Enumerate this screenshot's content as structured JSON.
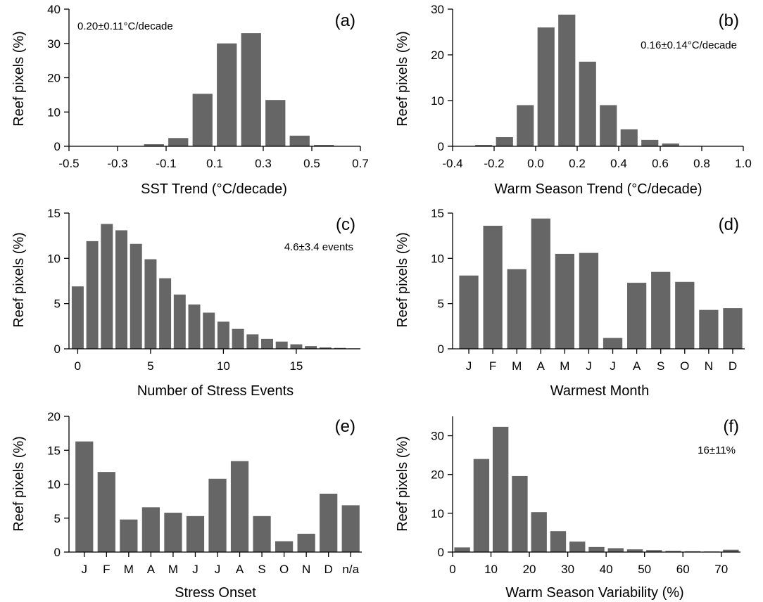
{
  "figure": {
    "panels": [
      {
        "panel_letter": "(a)",
        "annotation": "0.20±0.11°C/decade",
        "annotation_position": "top-left",
        "ylabel": "Reef pixels (%)",
        "xlabel": "SST Trend (°C/decade)"
      },
      {
        "panel_letter": "(b)",
        "annotation": "0.16±0.14°C/decade",
        "annotation_position": "top-right",
        "ylabel": "Reef pixels (%)",
        "xlabel": "Warm Season Trend (°C/decade)"
      },
      {
        "panel_letter": "(c)",
        "annotation": "4.6±3.4 events",
        "annotation_position": "top-right",
        "ylabel": "Reef pixels (%)",
        "xlabel": "Number of Stress Events"
      },
      {
        "panel_letter": "(d)",
        "annotation": "",
        "ylabel": "Reef pixels (%)",
        "xlabel": "Warmest Month"
      },
      {
        "panel_letter": "(e)",
        "annotation": "",
        "ylabel": "Reef pixels (%)",
        "xlabel": "Stress Onset"
      },
      {
        "panel_letter": "(f)",
        "annotation": "16±11%",
        "annotation_position": "top-right",
        "ylabel": "Reef pixels (%)",
        "xlabel": "Warm Season Variability (%)"
      }
    ]
  },
  "colors": {
    "bar": "#666666",
    "axis": "#000000",
    "background": "#ffffff"
  },
  "chart_data": [
    {
      "type": "bar",
      "panel": "(a)",
      "title": "",
      "xlabel": "SST Trend (°C/decade)",
      "ylabel": "Reef pixels (%)",
      "xlim": [
        -0.5,
        0.7
      ],
      "ylim": [
        0,
        40
      ],
      "xticks": [
        -0.5,
        -0.3,
        -0.1,
        0.1,
        0.3,
        0.5,
        0.7
      ],
      "xtick_labels": [
        "-0.5",
        "-0.3",
        "-0.1",
        "0.1",
        "0.3",
        "0.5",
        "0.7"
      ],
      "yticks": [
        0,
        10,
        20,
        30,
        40
      ],
      "bin_width": 0.1,
      "x": [
        -0.15,
        -0.05,
        0.05,
        0.15,
        0.25,
        0.35,
        0.45,
        0.55
      ],
      "values": [
        0.6,
        2.4,
        15.3,
        30.0,
        33.0,
        13.5,
        3.1,
        0.4
      ],
      "grid": false
    },
    {
      "type": "bar",
      "panel": "(b)",
      "title": "",
      "xlabel": "Warm Season Trend (°C/decade)",
      "ylabel": "Reef pixels (%)",
      "xlim": [
        -0.4,
        1.0
      ],
      "ylim": [
        0,
        30
      ],
      "xticks": [
        -0.4,
        -0.2,
        0.0,
        0.2,
        0.4,
        0.6,
        0.8,
        1.0
      ],
      "xtick_labels": [
        "-0.4",
        "-0.2",
        "0.0",
        "0.2",
        "0.4",
        "0.6",
        "0.8",
        "1.0"
      ],
      "yticks": [
        0,
        10,
        20,
        30
      ],
      "bin_width": 0.1,
      "x": [
        -0.25,
        -0.15,
        -0.05,
        0.05,
        0.15,
        0.25,
        0.35,
        0.45,
        0.55,
        0.65,
        0.75
      ],
      "values": [
        0.3,
        2.0,
        9.0,
        26.0,
        28.8,
        18.5,
        9.0,
        3.7,
        1.4,
        0.6,
        0.1
      ],
      "grid": false
    },
    {
      "type": "bar",
      "panel": "(c)",
      "title": "",
      "xlabel": "Number of Stress Events",
      "ylabel": "Reef pixels (%)",
      "xlim": [
        -0.6,
        19.4
      ],
      "ylim": [
        0,
        15
      ],
      "xticks": [
        0,
        5,
        10,
        15
      ],
      "xtick_labels": [
        "0",
        "5",
        "10",
        "15"
      ],
      "yticks": [
        0,
        5,
        10,
        15
      ],
      "bin_width": 1,
      "x": [
        0,
        1,
        2,
        3,
        4,
        5,
        6,
        7,
        8,
        9,
        10,
        11,
        12,
        13,
        14,
        15,
        16,
        17,
        18,
        19
      ],
      "values": [
        6.9,
        11.9,
        13.8,
        13.1,
        11.6,
        9.9,
        7.8,
        6.0,
        4.9,
        4.0,
        3.0,
        2.2,
        1.6,
        1.1,
        0.8,
        0.5,
        0.3,
        0.15,
        0.1,
        0.05
      ],
      "grid": false
    },
    {
      "type": "bar",
      "panel": "(d)",
      "title": "",
      "xlabel": "Warmest Month",
      "ylabel": "Reef pixels (%)",
      "ylim": [
        0,
        15
      ],
      "yticks": [
        0,
        5,
        10,
        15
      ],
      "categories": [
        "J",
        "F",
        "M",
        "A",
        "M",
        "J",
        "J",
        "A",
        "S",
        "O",
        "N",
        "D"
      ],
      "values": [
        8.1,
        13.6,
        8.8,
        14.4,
        10.5,
        10.6,
        1.2,
        7.3,
        8.5,
        7.4,
        4.3,
        4.5
      ],
      "grid": false
    },
    {
      "type": "bar",
      "panel": "(e)",
      "title": "",
      "xlabel": "Stress Onset",
      "ylabel": "Reef pixels (%)",
      "ylim": [
        0,
        20
      ],
      "yticks": [
        0,
        5,
        10,
        15,
        20
      ],
      "categories": [
        "J",
        "F",
        "M",
        "A",
        "M",
        "J",
        "J",
        "A",
        "S",
        "O",
        "N",
        "D",
        "n/a"
      ],
      "values": [
        16.3,
        11.8,
        4.8,
        6.6,
        5.8,
        5.3,
        10.8,
        13.4,
        5.3,
        1.6,
        2.7,
        8.6,
        6.9
      ],
      "grid": false
    },
    {
      "type": "bar",
      "panel": "(f)",
      "title": "",
      "xlabel": "Warm Season Variability (%)",
      "ylabel": "Reef pixels (%)",
      "xlim": [
        0,
        75
      ],
      "ylim": [
        0,
        35
      ],
      "xticks": [
        0,
        10,
        20,
        30,
        40,
        50,
        60,
        70
      ],
      "xtick_labels": [
        "0",
        "10",
        "20",
        "30",
        "40",
        "50",
        "60",
        "70"
      ],
      "yticks": [
        0,
        10,
        20,
        30
      ],
      "bin_width": 5,
      "x": [
        2.5,
        7.5,
        12.5,
        17.5,
        22.5,
        27.5,
        32.5,
        37.5,
        42.5,
        47.5,
        52.5,
        57.5,
        62.5,
        67.5,
        72.5
      ],
      "values": [
        1.2,
        24.0,
        32.3,
        19.6,
        10.3,
        5.4,
        2.7,
        1.3,
        1.0,
        0.7,
        0.5,
        0.3,
        0.2,
        0.15,
        0.6
      ],
      "grid": false
    }
  ]
}
